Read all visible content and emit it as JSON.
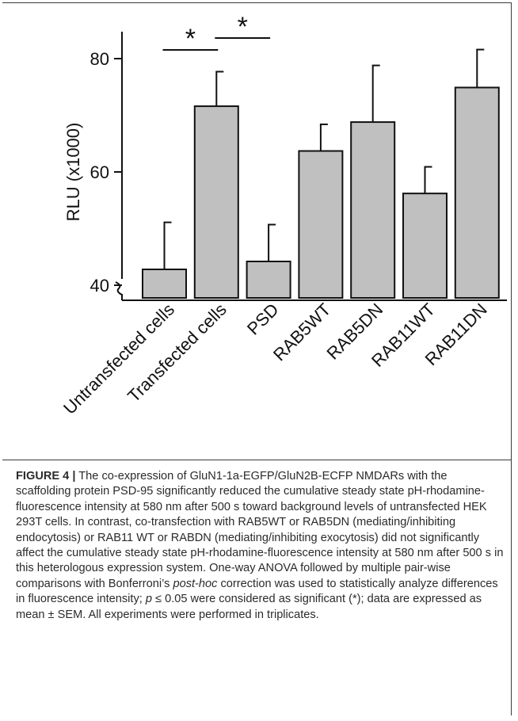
{
  "figure": {
    "label": "FIGURE 4 |",
    "caption_part1": " The co-expression of GluN1-1a-EGFP/GluN2B-ECFP NMDARs with the scaffolding protein PSD-95 significantly reduced the cumulative steady state pH-rhodamine-fluorescence intensity at 580 nm after 500 s toward background levels of untransfected HEK 293T cells. In contrast, co-transfection with RAB5WT or RAB5DN (mediating/inhibiting endocytosis) or RAB11 WT or RABDN (mediating/inhibiting exocytosis) did not significantly affect the cumulative steady state pH-rhodamine-fluorescence intensity at 580 nm after 500 s in this heterologous expression system. One-way ANOVA followed by multiple pair-wise comparisons with Bonferroni’s ",
    "caption_em1": "post-hoc",
    "caption_part2": " correction was used to statistically analyze differences in fluorescence intensity; ",
    "caption_em2": "p",
    "caption_part3": " ≤ 0.05 were considered as significant (*); data are expressed as mean ± SEM. All experiments were performed in triplicates."
  },
  "chart_data": {
    "type": "bar",
    "categories": [
      "Untransfected cells",
      "Transfected cells",
      "PSD",
      "RAB5WT",
      "RAB5DN",
      "RAB11WT",
      "RAB11DN"
    ],
    "values": [
      42.8,
      71.6,
      44.2,
      63.7,
      68.8,
      56.2,
      74.9
    ],
    "errors": [
      8.3,
      6.1,
      6.5,
      4.7,
      10.0,
      4.7,
      6.7
    ],
    "ylabel": "RLU (x1000)",
    "xlabel": "",
    "title": "",
    "ylim": [
      37,
      85
    ],
    "yticks": [
      40,
      60,
      80
    ],
    "axis_break": true,
    "grid": false,
    "bar_color": "#c0c0c0",
    "significance": [
      {
        "from": 0,
        "to": 1,
        "label": "*"
      },
      {
        "from": 1,
        "to": 2,
        "label": "*"
      }
    ]
  }
}
